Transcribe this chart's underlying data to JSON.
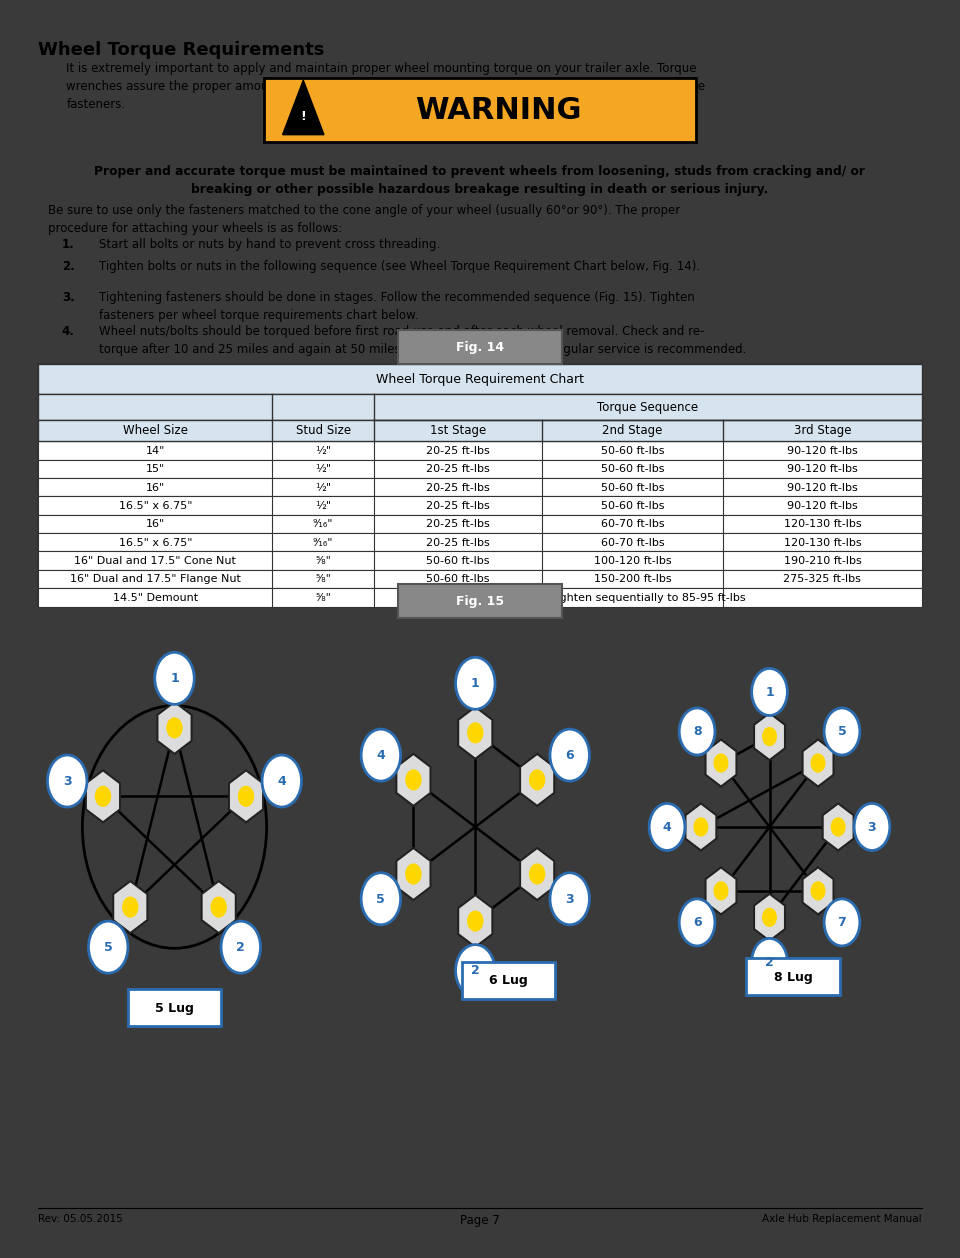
{
  "title": "Wheel Torque Requirements",
  "intro_text": "It is extremely important to apply and maintain proper wheel mounting torque on your trailer axle. Torque\nwrenches assure the proper amount of torque is being applied to a fastener. Use no other method to torque\nfasteners.",
  "warning_bg": "#F5A623",
  "bold_warning": "Proper and accurate torque must be maintained to prevent wheels from loosening, studs from cracking and/ or\nbreaking or other possible hazardous breakage resulting in death or serious injury.",
  "body_text1": "Be sure to use only the fasteners matched to the cone angle of your wheel (usually 60°or 90°). The proper\nprocedure for attaching your wheels is as follows:",
  "steps": [
    "Start all bolts or nuts by hand to prevent cross threading.",
    "Tighten bolts or nuts in the following sequence (see Wheel Torque Requirement Chart below, Fig. 14).",
    "Tightening fasteners should be done in stages. Follow the recommended sequence (Fig. 15). Tighten\nfasteners per wheel torque requirements chart below.",
    "Wheel nuts/bolts should be torqued before first road use and after each wheel removal. Check and re-\ntorque after 10 and 25 miles and again at 50 miles. A periodic check during regular service is recommended."
  ],
  "fig14_label": "Fig. 14",
  "table_title": "Wheel Torque Requirement Chart",
  "table_subheader": "Torque Sequence",
  "table_data": [
    [
      "14\"",
      "½\"",
      "20-25 ft-lbs",
      "50-60 ft-lbs",
      "90-120 ft-lbs"
    ],
    [
      "15\"",
      "½\"",
      "20-25 ft-lbs",
      "50-60 ft-lbs",
      "90-120 ft-lbs"
    ],
    [
      "16\"",
      "½\"",
      "20-25 ft-lbs",
      "50-60 ft-lbs",
      "90-120 ft-lbs"
    ],
    [
      "16.5\" x 6.75\"",
      "½\"",
      "20-25 ft-lbs",
      "50-60 ft-lbs",
      "90-120 ft-lbs"
    ],
    [
      "16\"",
      "⁹⁄₁₆\"",
      "20-25 ft-lbs",
      "60-70 ft-lbs",
      "120-130 ft-lbs"
    ],
    [
      "16.5\" x 6.75\"",
      "⁹⁄₁₆\"",
      "20-25 ft-lbs",
      "60-70 ft-lbs",
      "120-130 ft-lbs"
    ],
    [
      "16\" Dual and 17.5\" Cone Nut",
      "⁵⁄₈\"",
      "50-60 ft-lbs",
      "100-120 ft-lbs",
      "190-210 ft-lbs"
    ],
    [
      "16\" Dual and 17.5\" Flange Nut",
      "⁵⁄₈\"",
      "50-60 ft-lbs",
      "150-200 ft-lbs",
      "275-325 ft-lbs"
    ],
    [
      "14.5\" Demount",
      "⁵⁄₈\"",
      "Tighten sequentially to 85-95 ft-lbs",
      "",
      ""
    ]
  ],
  "fig15_label": "Fig. 15",
  "footer_left": "Rev: 05.05.2015",
  "footer_center": "Page 7",
  "footer_right": "Axle Hub Replacement Manual",
  "bg_color": "#FFFFFF",
  "outer_bg": "#3A3A3A",
  "table_header_bg": "#D6E4F0",
  "table_border": "#333333",
  "blue_circle": "#2B6CB0",
  "lug_box_color": "#2B6CB0"
}
